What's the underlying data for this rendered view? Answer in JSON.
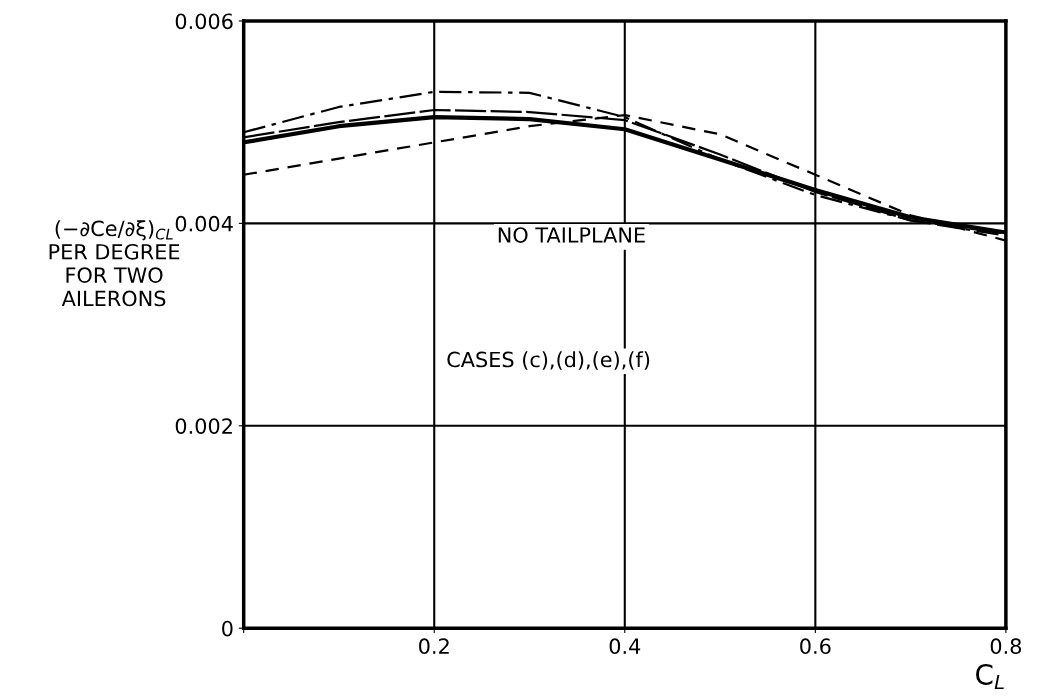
{
  "chart_data": {
    "type": "line",
    "xlabel": "C$_{L}$",
    "ylabel": "(−∂Ce/∂ξ)$_{CL}$\nPER DEGREE\nFOR TWO\nAILERONS",
    "x": [
      0,
      0.1,
      0.2,
      0.3,
      0.4,
      0.5,
      0.6,
      0.7,
      0.8
    ],
    "series": [
      {
        "color": "#000000",
        "line_style": "solid",
        "values": [
          0.0048,
          0.00496,
          0.00505,
          0.00503,
          0.00493,
          0.00463,
          0.00433,
          0.00406,
          0.00391
        ]
      },
      {
        "color": "#000000",
        "line_style": "dashdot",
        "values": [
          0.0049,
          0.00515,
          0.0053,
          0.00529,
          0.00505,
          0.00463,
          0.00428,
          0.00403,
          0.00388
        ]
      },
      {
        "color": "#000000",
        "line_style": "dashed",
        "values": [
          0.00448,
          0.00464,
          0.0048,
          0.00496,
          0.00507,
          0.00488,
          0.00448,
          0.00408,
          0.00383
        ]
      },
      {
        "color": "#000000",
        "line_style": "longdash",
        "values": [
          0.00485,
          0.005,
          0.00512,
          0.0051,
          0.00502,
          0.00468,
          0.00431,
          0.00403,
          0.0039
        ]
      }
    ],
    "xlim": [
      0,
      0.8
    ],
    "ylim": [
      0,
      0.006
    ],
    "xticks": [
      {
        "value": 0,
        "label": null
      },
      0.2,
      0.4,
      0.6,
      0.8
    ],
    "yticks": [
      0,
      0.002,
      0.004,
      0.006
    ],
    "grid": true,
    "annotations": [
      "NO TAILPLANE",
      "CASES (c),(d),(e),(f)"
    ]
  }
}
